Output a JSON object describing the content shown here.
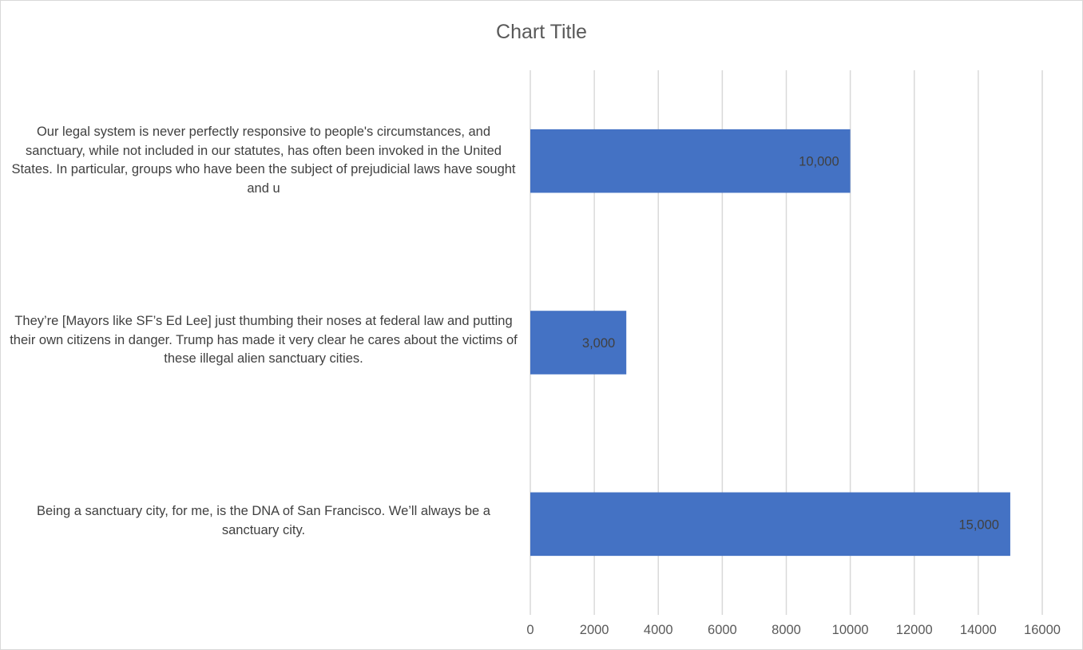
{
  "chart_data": {
    "type": "bar",
    "orientation": "horizontal",
    "title": "Chart Title",
    "xlabel": "",
    "ylabel": "",
    "xlim": [
      0,
      16000
    ],
    "tick_step": 2000,
    "ticks": [
      "0",
      "2000",
      "4000",
      "6000",
      "8000",
      "10000",
      "12000",
      "14000",
      "16000"
    ],
    "grid": true,
    "legend": "none",
    "bar_color": "#4472C4",
    "categories": [
      "Our legal system is never perfectly responsive to people's circumstances, and sanctuary, while not included in our statutes,  has often been invoked in the United States.  In particular, groups who have been the subject of prejudicial laws have sought and u",
      "They’re [Mayors like SF’s Ed Lee] just thumbing their noses at federal law and putting their own citizens in danger. Trump has made it very clear he cares about the victims of these illegal alien sanctuary cities.",
      "Being a sanctuary city, for me, is the DNA of San Francisco. We’ll always be a sanctuary city."
    ],
    "values": [
      10000,
      3000,
      15000
    ],
    "data_labels": [
      "10,000",
      "3,000",
      "15,000"
    ]
  }
}
